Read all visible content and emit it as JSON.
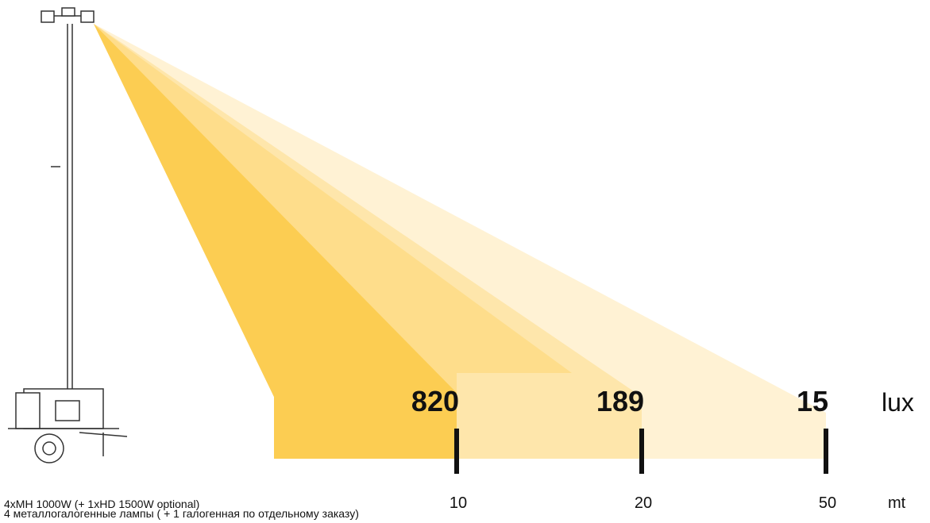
{
  "measurements": [
    {
      "lux": 820,
      "distance": 10
    },
    {
      "lux": 189,
      "distance": 20
    },
    {
      "lux": 15,
      "distance": 50
    }
  ],
  "lux_unit": "lux",
  "distance_unit": "mt",
  "caption": [
    "4xMH 1000W (+ 1xHD 1500W optional)",
    "4 металлогалогенные лампы ( + 1 галогенная по отдельному заказу)"
  ]
}
